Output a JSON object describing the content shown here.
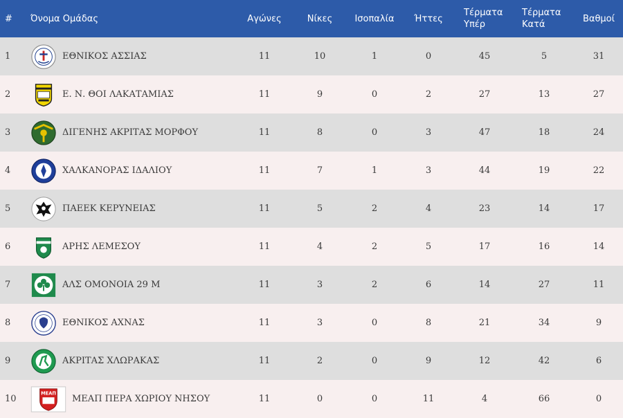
{
  "headers": {
    "rank": "#",
    "team": "Όνομα Ομάδας",
    "played": "Αγώνες",
    "wins": "Νίκες",
    "draws": "Ισοπαλία",
    "losses": "Ήττες",
    "goals_for_line1": "Τέρματα",
    "goals_for_line2": "Υπέρ",
    "goals_against_line1": "Τέρματα",
    "goals_against_line2": "Κατά",
    "points": "Βαθμοί"
  },
  "rows": [
    {
      "rank": "1",
      "team": "ΕΘΝΙΚΟΣ ΑΣΣΙΑΣ",
      "logo": "ethnikos-assias-crest",
      "played": "11",
      "wins": "10",
      "draws": "1",
      "losses": "0",
      "gf": "45",
      "ga": "5",
      "pts": "31"
    },
    {
      "rank": "2",
      "team": "Ε. Ν. ΘΟΙ ΛΑΚΑΤΑΜΙΑΣ",
      "logo": "thoi-lakatamias-crest",
      "played": "11",
      "wins": "9",
      "draws": "0",
      "losses": "2",
      "gf": "27",
      "ga": "13",
      "pts": "27"
    },
    {
      "rank": "3",
      "team": "ΔΙΓΕΝΗΣ ΑΚΡΙΤΑΣ ΜΟΡΦΟΥ",
      "logo": "digenis-morfou-crest",
      "played": "11",
      "wins": "8",
      "draws": "0",
      "losses": "3",
      "gf": "47",
      "ga": "18",
      "pts": "24"
    },
    {
      "rank": "4",
      "team": "ΧΑΛΚΑΝΟΡΑΣ ΙΔΑΛΙΟΥ",
      "logo": "chalkanoras-idaliou-crest",
      "played": "11",
      "wins": "7",
      "draws": "1",
      "losses": "3",
      "gf": "44",
      "ga": "19",
      "pts": "22"
    },
    {
      "rank": "5",
      "team": "ΠΑΕΕΚ ΚΕΡΥΝΕΙΑΣ",
      "logo": "paeek-keryneias-crest",
      "played": "11",
      "wins": "5",
      "draws": "2",
      "losses": "4",
      "gf": "23",
      "ga": "14",
      "pts": "17"
    },
    {
      "rank": "6",
      "team": "ΑΡΗΣ ΛΕΜΕΣΟΥ",
      "logo": "aris-lemesou-crest",
      "played": "11",
      "wins": "4",
      "draws": "2",
      "losses": "5",
      "gf": "17",
      "ga": "16",
      "pts": "14"
    },
    {
      "rank": "7",
      "team": "ΑΛΣ ΟΜΟΝΟΙΑ 29 Μ",
      "logo": "omonoia-29m-crest",
      "played": "11",
      "wins": "3",
      "draws": "2",
      "losses": "6",
      "gf": "14",
      "ga": "27",
      "pts": "11"
    },
    {
      "rank": "8",
      "team": "ΕΘΝΙΚΟΣ ΑΧΝΑΣ",
      "logo": "ethnikos-achnas-crest",
      "played": "11",
      "wins": "3",
      "draws": "0",
      "losses": "8",
      "gf": "21",
      "ga": "34",
      "pts": "9"
    },
    {
      "rank": "9",
      "team": "ΑΚΡΙΤΑΣ ΧΛΩΡΑΚΑΣ",
      "logo": "akritas-chlorakas-crest",
      "played": "11",
      "wins": "2",
      "draws": "0",
      "losses": "9",
      "gf": "12",
      "ga": "42",
      "pts": "6"
    },
    {
      "rank": "10",
      "team": "ΜΕΑΠ ΠΕΡΑ ΧΩΡΙΟΥ ΝΗΣΟΥ",
      "logo": "meap-pera-choriou-crest",
      "logo_text": "ΜΕΑΠ",
      "played": "11",
      "wins": "0",
      "draws": "0",
      "losses": "11",
      "gf": "4",
      "ga": "66",
      "pts": "0"
    }
  ],
  "colors": {
    "header_bg": "#2d5ba9",
    "row_odd": "#dedede",
    "row_even": "#f8efef",
    "text": "#3a3a3a"
  }
}
